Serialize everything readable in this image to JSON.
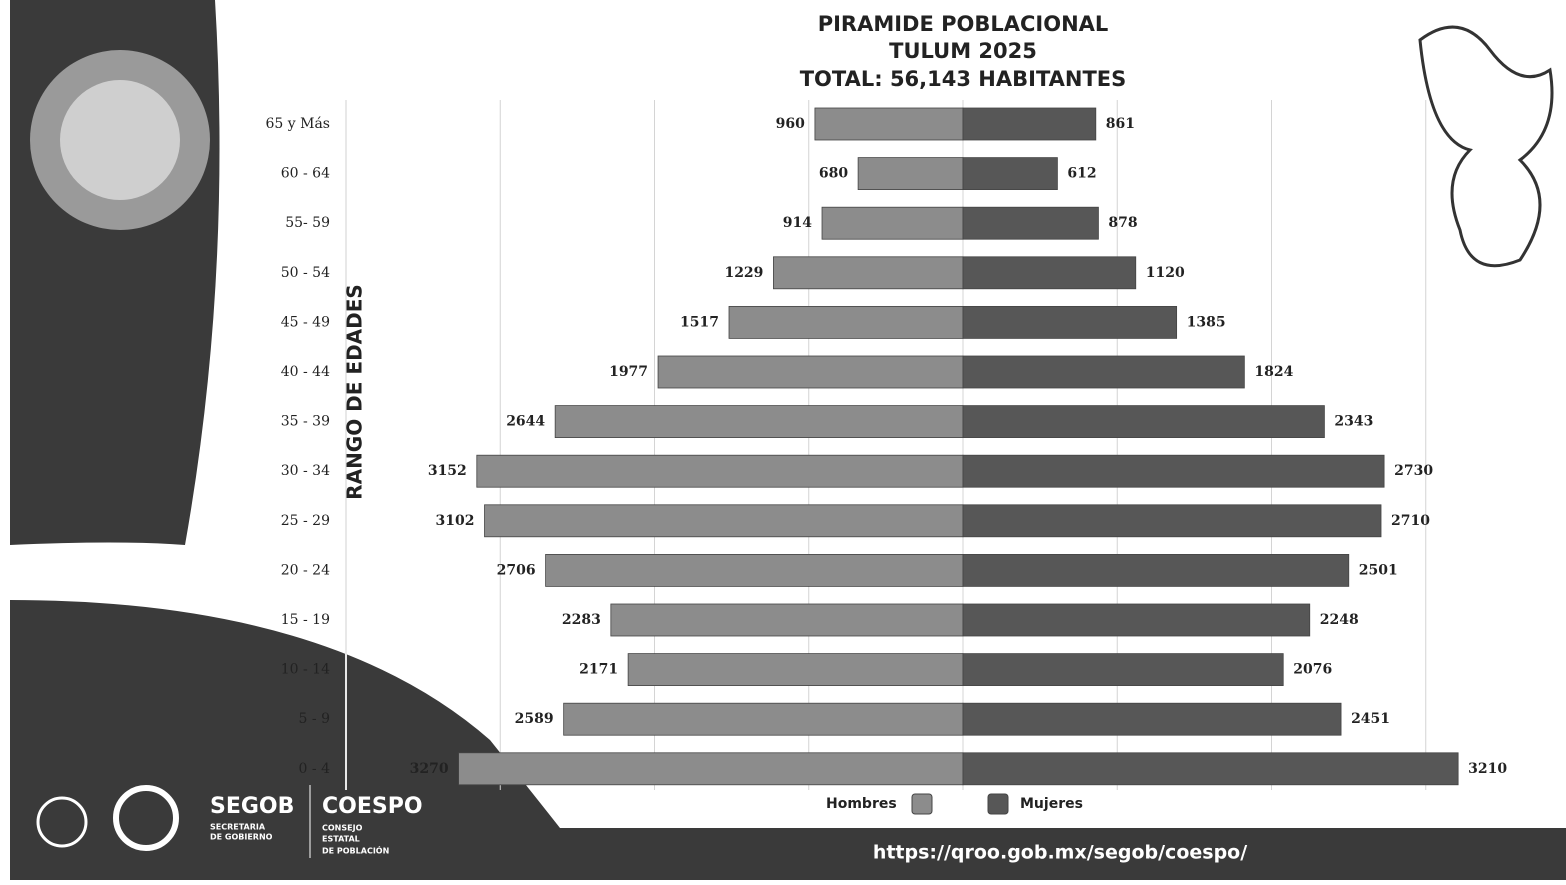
{
  "chart_data": {
    "type": "pyramid",
    "title": [
      "PIRAMIDE POBLACIONAL",
      "TULUM 2025",
      "TOTAL: 56,143 HABITANTES"
    ],
    "y_label": "RANGO DE EDADES",
    "categories": [
      "65 y Más",
      "60 - 64",
      "55- 59",
      "50 - 54",
      "45 - 49",
      "40 - 44",
      "35 - 39",
      "30 - 34",
      "25 - 29",
      "20 - 24",
      "15 - 19",
      "10 - 14",
      "5 - 9",
      "0 - 4"
    ],
    "series": [
      {
        "name": "Hombres",
        "color": "#8c8c8c",
        "side": "left",
        "values": [
          960,
          680,
          914,
          1229,
          1517,
          1977,
          2644,
          3152,
          3102,
          2706,
          2283,
          2171,
          2589,
          3270
        ]
      },
      {
        "name": "Mujeres",
        "color": "#575757",
        "side": "right",
        "values": [
          861,
          612,
          878,
          1120,
          1385,
          1824,
          2343,
          2730,
          2710,
          2501,
          2248,
          2076,
          2451,
          3210
        ]
      }
    ],
    "xlim": [
      -4000,
      4000
    ],
    "xticks": [
      -3000,
      -2000,
      -1000,
      0,
      1000,
      2000,
      3000
    ],
    "grid": true
  },
  "footer": {
    "url": "https://qroo.gob.mx/segob/coespo/",
    "segob": "SEGOB",
    "segob_sub": [
      "SECRETARIA",
      "DE GOBIERNO"
    ],
    "coespo": "COESPO",
    "coespo_sub": [
      "CONSEJO",
      "ESTATAL",
      "DE POBLACIÓN"
    ]
  }
}
